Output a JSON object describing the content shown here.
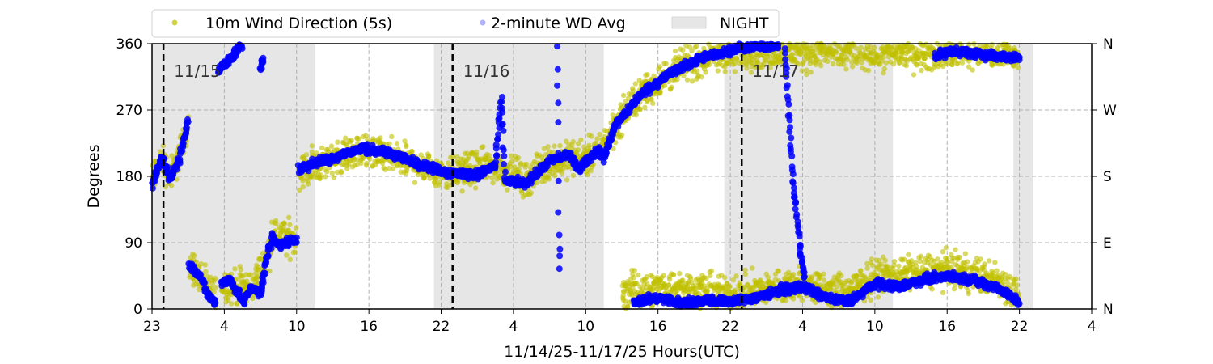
{
  "chart_data": {
    "type": "scatter",
    "xlabel": "11/14/25-11/17/25  Hours(UTC)",
    "ylabel": "Degrees",
    "xlim_hours": [
      0,
      78
    ],
    "ylim": [
      0,
      360
    ],
    "x_tick_hours": [
      0,
      6,
      12,
      18,
      24,
      30,
      36,
      42,
      48,
      54,
      60,
      66,
      72,
      78
    ],
    "x_tick_labels": [
      "23",
      "4",
      "10",
      "16",
      "22",
      "4",
      "10",
      "16",
      "22",
      "4",
      "10",
      "16",
      "22",
      "4"
    ],
    "y_ticks": [
      0,
      90,
      180,
      270,
      360
    ],
    "y_tick_labels": [
      "0",
      "90",
      "180",
      "270",
      "360"
    ],
    "y2_tick_labels": [
      "N",
      "E",
      "S",
      "W",
      "N"
    ],
    "grid": true,
    "legend": {
      "placement": "top-left",
      "entries": [
        {
          "label": "10m Wind Direction (5s)",
          "color": "#bfbf00"
        },
        {
          "label": "2-minute WD Avg",
          "color": "#0000ff"
        },
        {
          "label": "NIGHT",
          "color": "#e6e6e6"
        }
      ]
    },
    "date_markers": [
      {
        "hour": 0.95,
        "label": "11/15"
      },
      {
        "hour": 24.95,
        "label": "11/16"
      },
      {
        "hour": 48.95,
        "label": "11/17"
      }
    ],
    "night_periods_hours": [
      [
        0,
        13.5
      ],
      [
        23.4,
        37.5
      ],
      [
        47.5,
        61.5
      ],
      [
        71.5,
        73.1
      ]
    ],
    "series": [
      {
        "name": "2-minute WD Avg",
        "color": "#0000ff",
        "spread_deg": 7,
        "tracks": [
          [
            [
              0,
              167
            ],
            [
              0.8,
              205
            ],
            [
              1.5,
              175
            ],
            [
              2.3,
              205
            ],
            [
              3.0,
              260
            ]
          ],
          [
            [
              3.1,
              60
            ],
            [
              4.0,
              45
            ],
            [
              4.6,
              20
            ],
            [
              5.3,
              8
            ]
          ],
          [
            [
              5.8,
              35
            ],
            [
              6.5,
              40
            ],
            [
              7.0,
              25
            ],
            [
              7.6,
              10
            ],
            [
              8.2,
              30
            ],
            [
              9.0,
              20
            ],
            [
              9.4,
              60
            ],
            [
              10.0,
              100
            ],
            [
              10.6,
              85
            ],
            [
              11.0,
              90
            ],
            [
              12.0,
              95
            ]
          ],
          [
            [
              5.5,
              325
            ],
            [
              6.3,
              335
            ],
            [
              7.0,
              350
            ],
            [
              7.5,
              357
            ]
          ],
          [
            [
              9.0,
              325
            ],
            [
              9.3,
              345
            ]
          ],
          [
            [
              12.2,
              190
            ],
            [
              13,
              195
            ],
            [
              15,
              205
            ],
            [
              17.5,
              218
            ],
            [
              20,
              210
            ],
            [
              22.5,
              195
            ],
            [
              24.5,
              185
            ],
            [
              27,
              182
            ],
            [
              28.5,
              195
            ],
            [
              29.0,
              285
            ],
            [
              29.3,
              175
            ],
            [
              31,
              170
            ],
            [
              33,
              200
            ],
            [
              34.5,
              210
            ],
            [
              35.5,
              190
            ],
            [
              36,
              200
            ],
            [
              37,
              215
            ],
            [
              37.5,
              205
            ],
            [
              38.5,
              250
            ],
            [
              40.5,
              290
            ],
            [
              43,
              320
            ],
            [
              45.5,
              340
            ],
            [
              49,
              355
            ],
            [
              52,
              357
            ]
          ],
          [
            [
              33.6,
              355
            ],
            [
              33.7,
              250
            ],
            [
              33.8,
              100
            ],
            [
              33.9,
              40
            ]
          ],
          [
            [
              40,
              10
            ],
            [
              42,
              15
            ],
            [
              44,
              8
            ],
            [
              46,
              12
            ],
            [
              48,
              10
            ],
            [
              50,
              15
            ],
            [
              52,
              25
            ],
            [
              54,
              30
            ],
            [
              56,
              15
            ],
            [
              58,
              10
            ],
            [
              60,
              35
            ],
            [
              62,
              30
            ],
            [
              64,
              40
            ],
            [
              66,
              45
            ],
            [
              68,
              40
            ],
            [
              70,
              30
            ],
            [
              72,
              10
            ]
          ],
          [
            [
              52.5,
              355
            ],
            [
              53.2,
              180
            ],
            [
              53.8,
              80
            ],
            [
              54.2,
              40
            ]
          ],
          [
            [
              65,
              345
            ],
            [
              67,
              350
            ],
            [
              69,
              345
            ],
            [
              72,
              340
            ]
          ]
        ]
      },
      {
        "name": "10m Wind Direction (5s)",
        "color": "#bfbf00",
        "spread_deg": 28,
        "tracks": [
          [
            [
              0,
              175
            ],
            [
              0.8,
              205
            ],
            [
              1.5,
              180
            ],
            [
              2.3,
              210
            ],
            [
              3.0,
              250
            ]
          ],
          [
            [
              3.1,
              60
            ],
            [
              4.0,
              45
            ],
            [
              4.6,
              25
            ],
            [
              5.3,
              15
            ]
          ],
          [
            [
              5.8,
              35
            ],
            [
              7.0,
              30
            ],
            [
              8.2,
              30
            ],
            [
              9.4,
              60
            ],
            [
              10.0,
              100
            ],
            [
              12.0,
              95
            ]
          ],
          [
            [
              12.2,
              185
            ],
            [
              15,
              205
            ],
            [
              17.5,
              215
            ],
            [
              20,
              205
            ],
            [
              24.5,
              185
            ],
            [
              28.5,
              195
            ],
            [
              31,
              175
            ],
            [
              33,
              200
            ],
            [
              37,
              210
            ],
            [
              38.5,
              250
            ],
            [
              40.5,
              290
            ],
            [
              43,
              320
            ],
            [
              45.5,
              340
            ],
            [
              49,
              350
            ],
            [
              60,
              348
            ],
            [
              72,
              348
            ]
          ],
          [
            [
              39,
              25
            ],
            [
              44,
              30
            ],
            [
              48,
              20
            ],
            [
              52,
              30
            ],
            [
              54,
              35
            ],
            [
              56,
              25
            ],
            [
              58,
              25
            ],
            [
              60,
              45
            ],
            [
              64,
              50
            ],
            [
              66,
              55
            ],
            [
              70,
              40
            ],
            [
              72,
              20
            ]
          ]
        ]
      }
    ]
  }
}
